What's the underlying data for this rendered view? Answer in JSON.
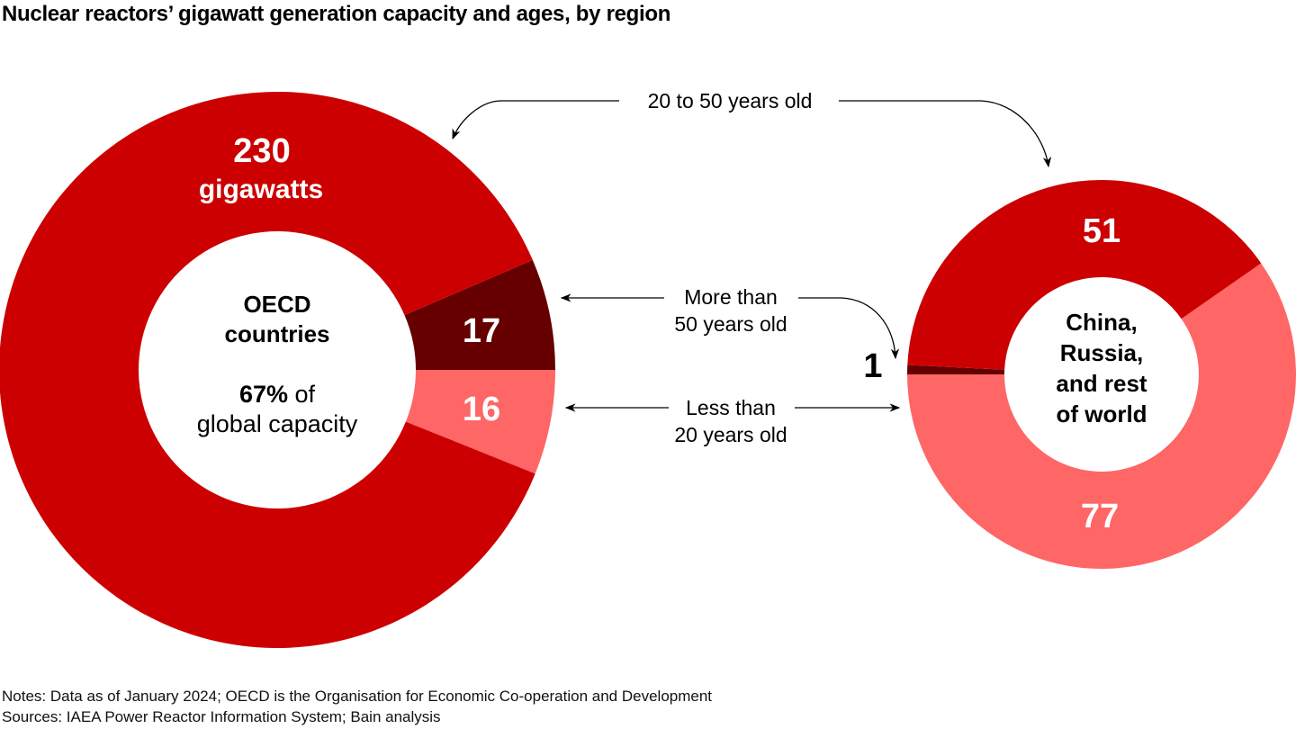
{
  "chart_data": {
    "type": "pie",
    "title": "Nuclear reactors’ gigawatt generation capacity and ages, by region",
    "unit": "gigawatts",
    "categories": [
      "More than 50 years old",
      "Less than 20 years old",
      "20 to 50 years old"
    ],
    "colors": {
      "20 to 50 years old": "#CC0000",
      "More than 50 years old": "#660000",
      "Less than 20 years old": "#FF6666"
    },
    "charts": [
      {
        "id": "oecd",
        "center_label": [
          "OECD",
          "countries"
        ],
        "share_bold": "67%",
        "share_rest": " of",
        "share_line2": "global capacity",
        "slices": [
          {
            "category": "More than 50 years old",
            "value": 17,
            "label": "17"
          },
          {
            "category": "Less than 20 years old",
            "value": 16,
            "label": "16"
          },
          {
            "category": "20 to 50 years old",
            "value": 230,
            "label": "230",
            "sublabel": "gigawatts"
          }
        ]
      },
      {
        "id": "rest",
        "center_label": [
          "China,",
          "Russia,",
          "and rest",
          "of world"
        ],
        "slices": [
          {
            "category": "More than 50 years old",
            "value": 1,
            "label": "1"
          },
          {
            "category": "Less than 20 years old",
            "value": 77,
            "label": "77"
          },
          {
            "category": "20 to 50 years old",
            "value": 51,
            "label": "51"
          }
        ]
      }
    ],
    "annotations": {
      "mid_age": "20 to 50 years old",
      "old_line1": "More than",
      "old_line2": "50 years old",
      "young_line1": "Less than",
      "young_line2": "20 years old"
    }
  },
  "footer": {
    "notes": "Notes: Data as of January 2024; OECD is the Organisation for Economic Co-operation and Development",
    "sources": "Sources: IAEA Power Reactor Information System; Bain analysis"
  }
}
